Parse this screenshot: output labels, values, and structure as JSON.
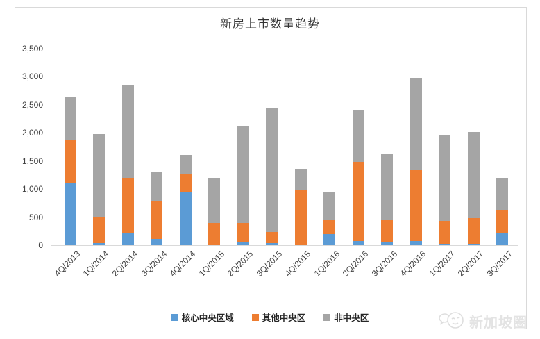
{
  "title": "新房上市数量趋势",
  "watermark": {
    "text": "新加坡圈",
    "icon": "chat-bird-logo"
  },
  "colors": {
    "core_central_blue": "#5B9BD5",
    "other_central_orange": "#ED7D31",
    "non_central_gray": "#A5A5A5",
    "axis_line": "#D9D9D9",
    "text": "#404040"
  },
  "legend": [
    {
      "key": "core-central",
      "label": "核心中央区域",
      "color": "#5B9BD5"
    },
    {
      "key": "other-central",
      "label": "其他中央区",
      "color": "#ED7D31"
    },
    {
      "key": "non-central",
      "label": "非中央区",
      "color": "#A5A5A5"
    }
  ],
  "chart_data": {
    "type": "bar",
    "stacked": true,
    "title": "新房上市数量趋势",
    "categories": [
      "4Q/2013",
      "1Q/2014",
      "2Q/2014",
      "3Q/2014",
      "4Q/2014",
      "1Q/2015",
      "2Q/2015",
      "3Q/2015",
      "4Q/2015",
      "1Q/2016",
      "2Q/2016",
      "3Q/2016",
      "4Q/2016",
      "1Q/2017",
      "2Q/2017",
      "3Q/2017"
    ],
    "series": [
      {
        "name": "核心中央区域",
        "key": "core-central",
        "color": "#5B9BD5",
        "values": [
          1100,
          40,
          220,
          110,
          950,
          10,
          50,
          40,
          10,
          200,
          70,
          60,
          80,
          20,
          30,
          220
        ]
      },
      {
        "name": "其他中央区",
        "key": "other-central",
        "color": "#ED7D31",
        "values": [
          780,
          460,
          980,
          680,
          330,
          380,
          340,
          190,
          980,
          260,
          1410,
          390,
          1250,
          410,
          450,
          400
        ]
      },
      {
        "name": "非中央区",
        "key": "non-central",
        "color": "#A5A5A5",
        "values": [
          770,
          1480,
          1650,
          520,
          330,
          810,
          1720,
          2220,
          360,
          490,
          920,
          1170,
          1640,
          1530,
          1540,
          580
        ]
      }
    ],
    "totals": [
      2650,
      1980,
      2850,
      1310,
      1610,
      1200,
      2110,
      2450,
      1350,
      950,
      2400,
      1620,
      2970,
      1960,
      2020,
      1200
    ],
    "xlabel": "",
    "ylabel": "",
    "ylim": [
      0,
      3500
    ],
    "ytick_step": 500,
    "yticks": [
      "3,500",
      "3,000",
      "2,500",
      "2,000",
      "1,500",
      "1,000",
      "500",
      "0"
    ],
    "grid": false,
    "legend_position": "bottom"
  }
}
